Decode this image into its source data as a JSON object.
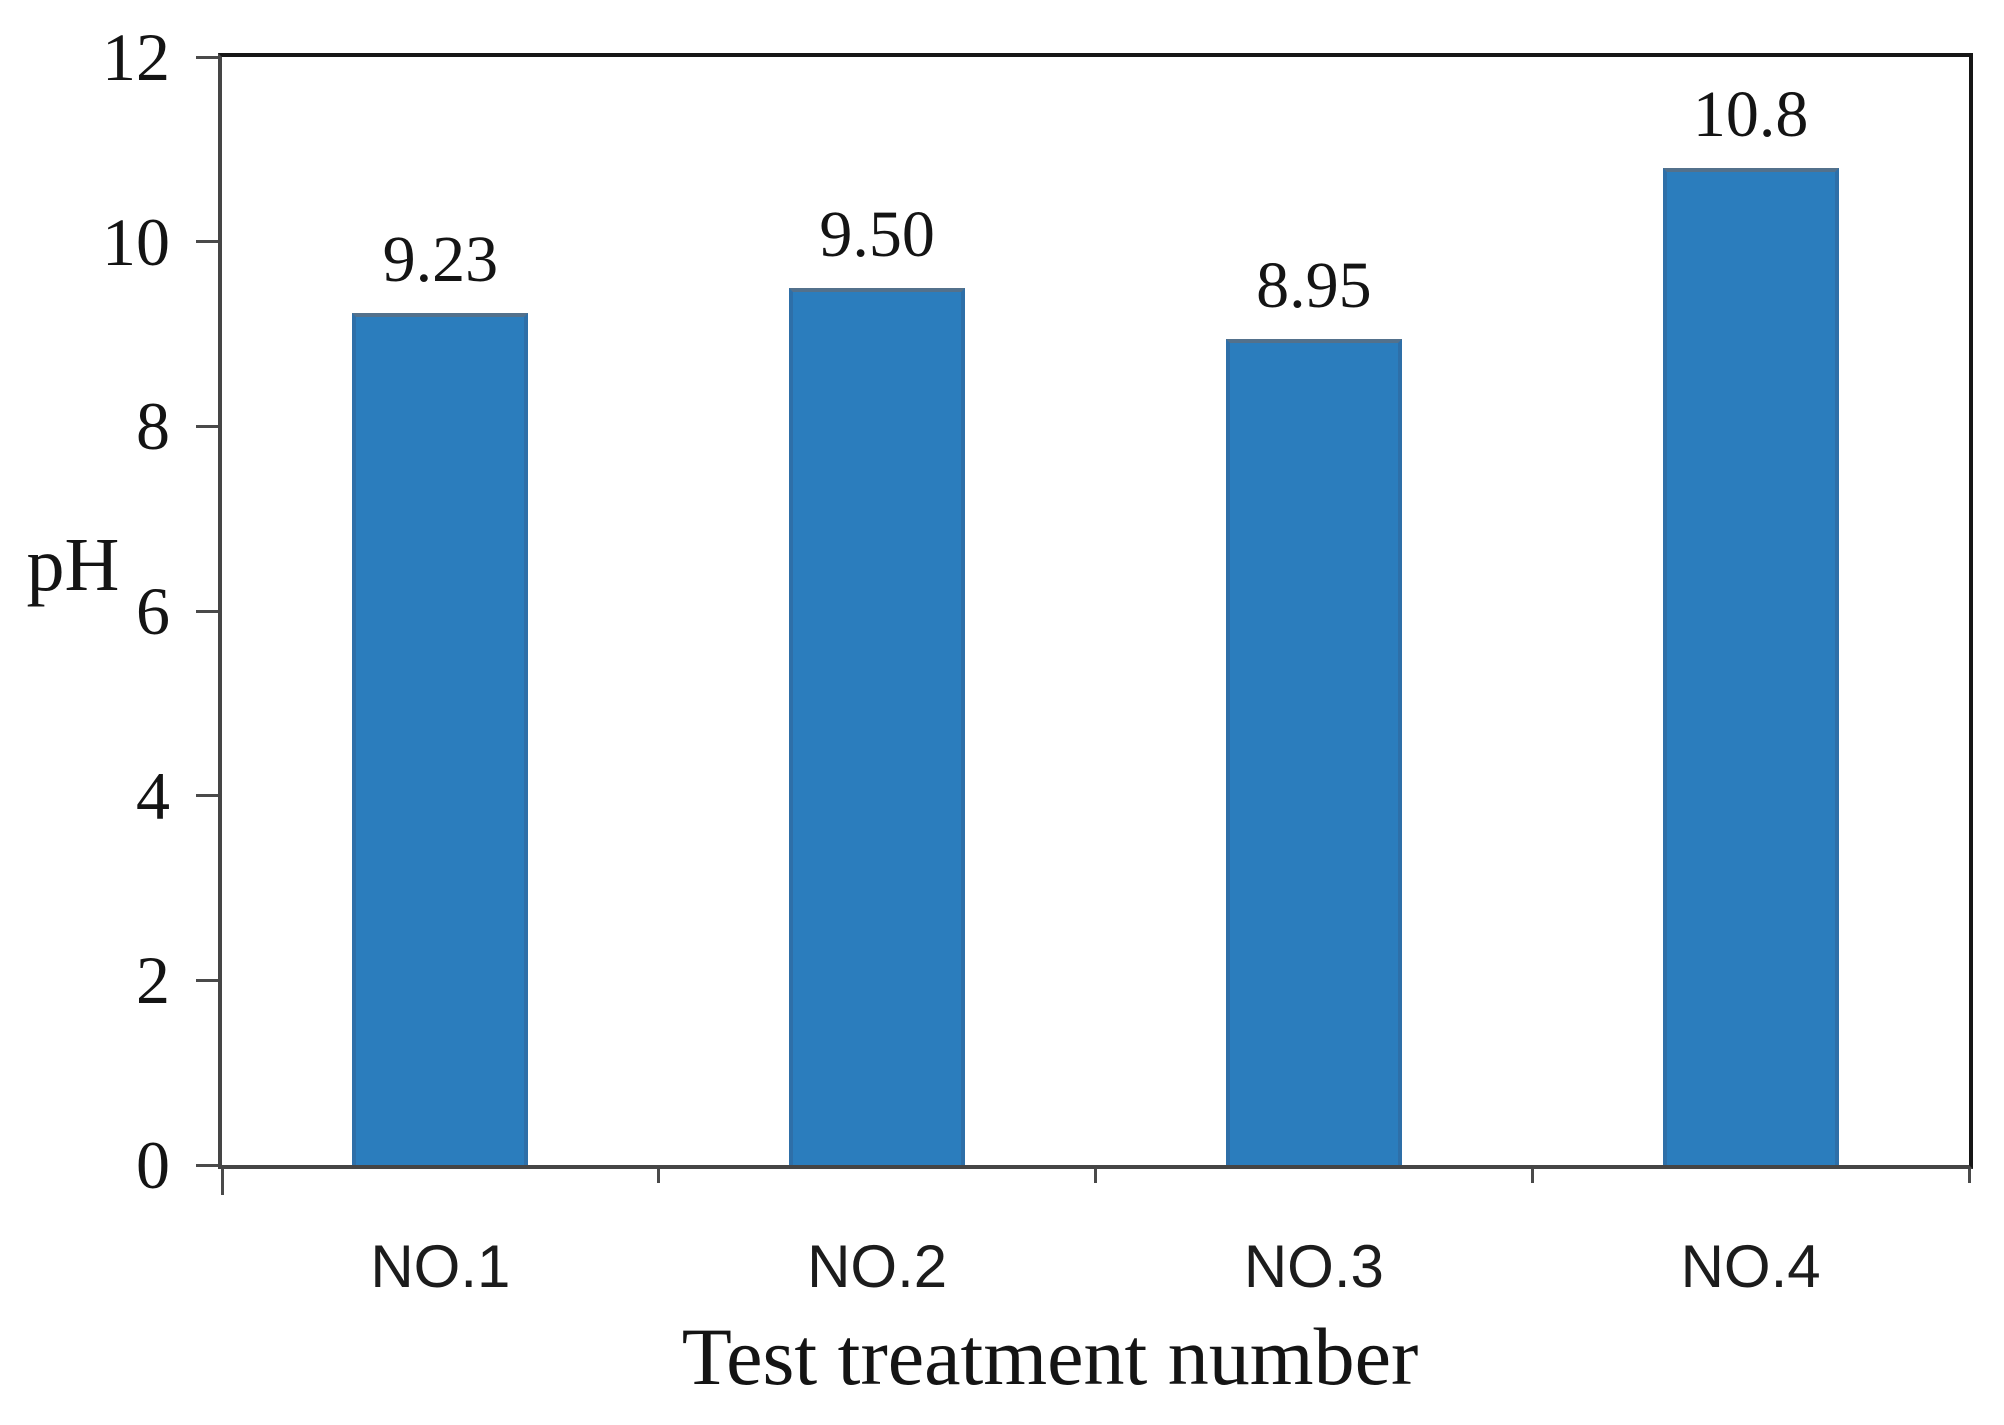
{
  "chart_data": {
    "type": "bar",
    "title": "",
    "categories": [
      "NO.1",
      "NO.2",
      "NO.3",
      "NO.4"
    ],
    "values": [
      9.23,
      9.5,
      8.95,
      10.8
    ],
    "value_labels": [
      "9.23",
      "9.50",
      "8.95",
      "10.8"
    ],
    "xlabel": "Test treatment number",
    "ylabel": "pH",
    "ylim": [
      0,
      12
    ],
    "yticks": [
      0,
      2,
      4,
      6,
      8,
      10,
      12
    ],
    "grid": false,
    "legend": "none",
    "bar_color": "#2b7dbd",
    "bar_border_color": "#2e6fa8",
    "bar_top_edge_color": "#53718c",
    "axis_tick_color": "#4a4a4a",
    "frame_color": "#161616",
    "text_color": "#141414",
    "background": "#ffffff"
  }
}
